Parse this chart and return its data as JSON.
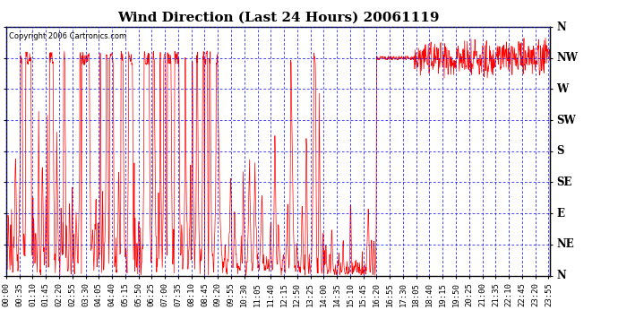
{
  "title": "Wind Direction (Last 24 Hours) 20061119",
  "copyright_text": "Copyright 2006 Cartronics.com",
  "bg_color": "#ffffff",
  "plot_bg_color": "#ffffff",
  "grid_color": "#0000ff",
  "line_color": "#ff0000",
  "border_color": "#000000",
  "ytick_labels_right": [
    "N",
    "NW",
    "W",
    "SW",
    "S",
    "SE",
    "E",
    "NE",
    "N"
  ],
  "ytick_values": [
    360,
    315,
    270,
    225,
    180,
    135,
    90,
    45,
    0
  ],
  "ylim": [
    0,
    360
  ],
  "title_fontsize": 11,
  "tick_fontsize": 6.5,
  "seed": 42,
  "xtick_interval_min": 35,
  "total_minutes": 1439,
  "n_points": 1440
}
